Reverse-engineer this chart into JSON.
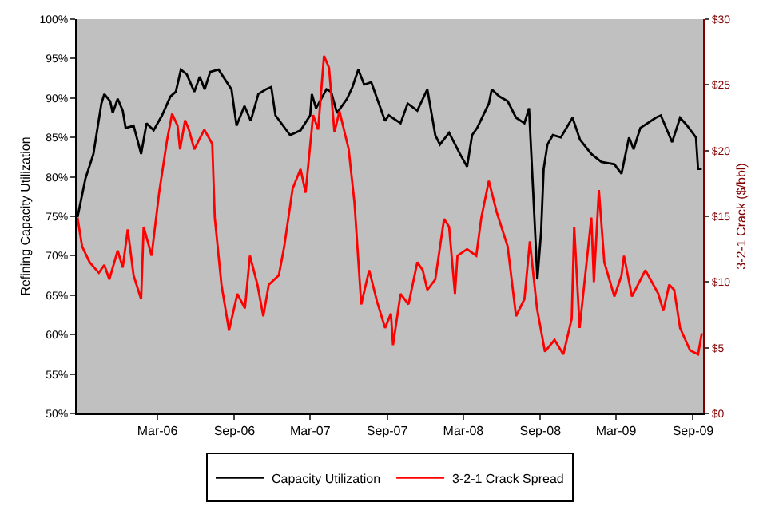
{
  "chart_data": {
    "type": "line",
    "ylabel": "Refining Capacity Utilization",
    "y2label": "3-2-1 Crack ($/bbl)",
    "xlim": [
      "2005-08-20",
      "2009-09-25"
    ],
    "xticks": [
      {
        "value": "2006-03-01",
        "label": "Mar-06"
      },
      {
        "value": "2006-09-01",
        "label": "Sep-06"
      },
      {
        "value": "2007-03-01",
        "label": "Mar-07"
      },
      {
        "value": "2007-09-01",
        "label": "Sep-07"
      },
      {
        "value": "2008-03-01",
        "label": "Mar-08"
      },
      {
        "value": "2008-09-01",
        "label": "Sep-08"
      },
      {
        "value": "2009-03-01",
        "label": "Mar-09"
      },
      {
        "value": "2009-09-01",
        "label": "Sep-09"
      }
    ],
    "ylim": [
      50,
      100
    ],
    "yticks": [
      {
        "value": 50,
        "label": "50%"
      },
      {
        "value": 55,
        "label": "55%"
      },
      {
        "value": 60,
        "label": "60%"
      },
      {
        "value": 65,
        "label": "65%"
      },
      {
        "value": 70,
        "label": "70%"
      },
      {
        "value": 75,
        "label": "75%"
      },
      {
        "value": 80,
        "label": "80%"
      },
      {
        "value": 85,
        "label": "85%"
      },
      {
        "value": 90,
        "label": "90%"
      },
      {
        "value": 95,
        "label": "95%"
      },
      {
        "value": 100,
        "label": "100%"
      }
    ],
    "y2lim": [
      0,
      30
    ],
    "y2ticks": [
      {
        "value": 0,
        "label": "$0"
      },
      {
        "value": 5,
        "label": "$5"
      },
      {
        "value": 10,
        "label": "$10"
      },
      {
        "value": 15,
        "label": "$15"
      },
      {
        "value": 20,
        "label": "$20"
      },
      {
        "value": 25,
        "label": "$25"
      },
      {
        "value": 30,
        "label": "$30"
      }
    ],
    "grid": false,
    "legend": "bottom",
    "marker": "none",
    "line_style": "solid",
    "series": [
      {
        "name": "Capacity Utilization",
        "color": "#000000",
        "x": [
          "2005-08-22",
          "2005-09-10",
          "2005-09-29",
          "2005-10-18",
          "2005-10-25",
          "2005-11-08",
          "2005-11-14",
          "2005-11-26",
          "2005-12-08",
          "2005-12-15",
          "2006-01-03",
          "2006-01-21",
          "2006-02-03",
          "2006-02-20",
          "2006-03-12",
          "2006-04-01",
          "2006-04-14",
          "2006-04-26",
          "2006-05-10",
          "2006-05-28",
          "2006-06-10",
          "2006-06-22",
          "2006-07-05",
          "2006-07-25",
          "2006-08-25",
          "2006-09-06",
          "2006-09-25",
          "2006-10-10",
          "2006-10-28",
          "2006-11-15",
          "2006-11-28",
          "2006-12-08",
          "2007-01-12",
          "2007-02-06",
          "2007-03-01",
          "2007-03-05",
          "2007-03-15",
          "2007-04-09",
          "2007-04-20",
          "2007-05-04",
          "2007-05-28",
          "2007-06-10",
          "2007-06-24",
          "2007-07-08",
          "2007-07-25",
          "2007-08-06",
          "2007-08-27",
          "2007-09-05",
          "2007-10-03",
          "2007-10-20",
          "2007-11-12",
          "2007-12-06",
          "2007-12-25",
          "2008-01-05",
          "2008-01-27",
          "2008-02-22",
          "2008-03-10",
          "2008-03-22",
          "2008-04-03",
          "2008-05-01",
          "2008-05-08",
          "2008-05-26",
          "2008-06-15",
          "2008-07-05",
          "2008-07-25",
          "2008-08-05",
          "2008-08-15",
          "2008-08-25",
          "2008-09-03",
          "2008-09-09",
          "2008-09-18",
          "2008-10-01",
          "2008-10-20",
          "2008-11-17",
          "2008-12-05",
          "2009-01-01",
          "2009-01-25",
          "2009-02-25",
          "2009-03-14",
          "2009-04-01",
          "2009-04-12",
          "2009-04-28",
          "2009-06-04",
          "2009-06-16",
          "2009-07-13",
          "2009-08-01",
          "2009-08-18",
          "2009-09-08",
          "2009-09-13",
          "2009-09-22"
        ],
        "values": [
          74.9,
          79.8,
          82.9,
          89.3,
          90.5,
          89.6,
          88.1,
          89.9,
          88.4,
          86.2,
          86.5,
          82.9,
          86.8,
          85.9,
          87.8,
          90.2,
          90.8,
          93.6,
          93.0,
          90.8,
          92.7,
          91.1,
          93.3,
          93.6,
          91.1,
          86.5,
          89.0,
          87.1,
          90.5,
          91.1,
          91.4,
          87.8,
          85.3,
          85.9,
          87.8,
          90.5,
          88.7,
          91.1,
          90.8,
          88.1,
          89.9,
          91.4,
          93.6,
          91.7,
          92.0,
          90.2,
          87.1,
          87.8,
          86.8,
          89.3,
          88.4,
          91.1,
          85.3,
          84.1,
          85.6,
          82.9,
          81.3,
          85.3,
          86.2,
          89.3,
          91.1,
          90.2,
          89.6,
          87.5,
          86.8,
          88.7,
          78.0,
          67.0,
          73.1,
          81.0,
          84.1,
          85.3,
          85.0,
          87.5,
          84.7,
          82.9,
          81.9,
          81.6,
          80.4,
          85.0,
          83.5,
          86.2,
          87.5,
          87.8,
          84.4,
          87.5,
          86.5,
          85.0,
          81.0,
          81.0
        ]
      },
      {
        "name": "3-2-1 Crack Spread",
        "color": "#ff0000",
        "axis": "y2",
        "x": [
          "2005-08-22",
          "2005-09-02",
          "2005-09-20",
          "2005-10-12",
          "2005-10-25",
          "2005-11-06",
          "2005-11-26",
          "2005-12-08",
          "2005-12-20",
          "2006-01-03",
          "2006-01-21",
          "2006-01-27",
          "2006-02-15",
          "2006-03-05",
          "2006-03-24",
          "2006-04-05",
          "2006-04-18",
          "2006-04-24",
          "2006-05-06",
          "2006-05-15",
          "2006-05-28",
          "2006-06-21",
          "2006-07-10",
          "2006-07-16",
          "2006-08-01",
          "2006-08-19",
          "2006-09-08",
          "2006-09-26",
          "2006-10-08",
          "2006-10-26",
          "2006-11-09",
          "2006-11-22",
          "2006-12-16",
          "2006-12-29",
          "2007-01-18",
          "2007-02-06",
          "2007-02-18",
          "2007-03-08",
          "2007-03-20",
          "2007-04-03",
          "2007-04-15",
          "2007-04-28",
          "2007-05-10",
          "2007-06-01",
          "2007-06-15",
          "2007-07-01",
          "2007-07-20",
          "2007-08-08",
          "2007-08-27",
          "2007-09-10",
          "2007-09-15",
          "2007-10-03",
          "2007-10-22",
          "2007-11-12",
          "2007-11-25",
          "2007-12-06",
          "2007-12-25",
          "2008-01-15",
          "2008-01-27",
          "2008-02-10",
          "2008-02-16",
          "2008-03-10",
          "2008-04-01",
          "2008-04-13",
          "2008-05-01",
          "2008-05-20",
          "2008-06-15",
          "2008-07-05",
          "2008-07-25",
          "2008-08-07",
          "2008-08-24",
          "2008-09-12",
          "2008-10-05",
          "2008-10-26",
          "2008-11-15",
          "2008-11-21",
          "2008-12-04",
          "2009-01-01",
          "2009-01-07",
          "2009-01-19",
          "2009-02-01",
          "2009-02-25",
          "2009-03-14",
          "2009-03-20",
          "2009-04-08",
          "2009-05-10",
          "2009-06-10",
          "2009-06-22",
          "2009-07-06",
          "2009-07-18",
          "2009-08-01",
          "2009-08-25",
          "2009-09-13",
          "2009-09-22"
        ],
        "values": [
          14.9,
          12.7,
          11.5,
          10.7,
          11.3,
          10.2,
          12.4,
          11.1,
          14.0,
          10.5,
          8.7,
          14.2,
          12.0,
          16.8,
          20.8,
          22.8,
          21.9,
          20.1,
          22.3,
          21.6,
          20.1,
          21.6,
          20.5,
          14.9,
          9.8,
          6.3,
          9.1,
          8.0,
          12.0,
          9.8,
          7.4,
          9.8,
          10.5,
          12.7,
          17.1,
          18.6,
          16.8,
          22.7,
          21.6,
          27.2,
          26.3,
          21.4,
          23.0,
          20.1,
          16.0,
          8.3,
          10.9,
          8.5,
          6.5,
          7.6,
          5.2,
          9.1,
          8.3,
          11.5,
          10.9,
          9.4,
          10.2,
          14.8,
          14.2,
          9.1,
          12.0,
          12.5,
          12.0,
          14.9,
          17.7,
          15.3,
          12.7,
          7.4,
          8.7,
          13.1,
          8.0,
          4.7,
          5.6,
          4.5,
          7.2,
          14.2,
          6.5,
          14.9,
          10.0,
          17.0,
          11.5,
          8.9,
          10.5,
          12.0,
          8.9,
          10.9,
          9.1,
          7.8,
          9.8,
          9.4,
          6.5,
          4.8,
          4.5,
          6.1
        ]
      }
    ]
  }
}
